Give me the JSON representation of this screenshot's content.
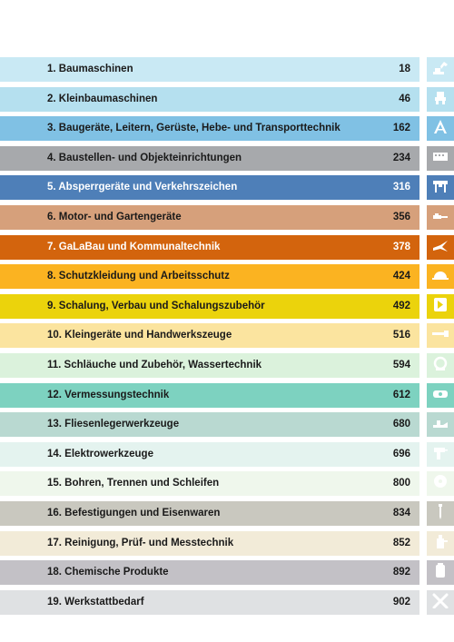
{
  "toc": {
    "entries": [
      {
        "title": "1. Baumaschinen",
        "page": "18",
        "color": "#c9e9f4",
        "text_color": "#1a1a1a",
        "icon": "excavator-icon"
      },
      {
        "title": "2. Kleinbaumaschinen",
        "page": "46",
        "color": "#b5e0ef",
        "text_color": "#1a1a1a",
        "icon": "small-machine-icon"
      },
      {
        "title": "3. Baugeräte, Leitern, Gerüste, Hebe- und Transporttechnik",
        "page": "162",
        "color": "#80c1e4",
        "text_color": "#1a1a1a",
        "icon": "ladder-icon"
      },
      {
        "title": "4. Baustellen- und Objekteinrichtungen",
        "page": "234",
        "color": "#a7a9ac",
        "text_color": "#1a1a1a",
        "icon": "container-icon"
      },
      {
        "title": "5. Absperrgeräte und Verkehrszeichen",
        "page": "316",
        "color": "#4e7fb8",
        "text_color": "#ffffff",
        "icon": "barrier-icon"
      },
      {
        "title": "6. Motor- und Gartengeräte",
        "page": "356",
        "color": "#d6a07b",
        "text_color": "#1a1a1a",
        "icon": "chainsaw-icon"
      },
      {
        "title": "7. GaLaBau und Kommunaltechnik",
        "page": "378",
        "color": "#d3640d",
        "text_color": "#ffffff",
        "icon": "shears-icon"
      },
      {
        "title": "8. Schutzkleidung und Arbeitsschutz",
        "page": "424",
        "color": "#fbb321",
        "text_color": "#1a1a1a",
        "icon": "helmet-icon"
      },
      {
        "title": "9. Schalung, Verbau und Schalungszubehör",
        "page": "492",
        "color": "#ebd30c",
        "text_color": "#1a1a1a",
        "icon": "formwork-icon"
      },
      {
        "title": "10. Kleingeräte und Handwerkszeuge",
        "page": "516",
        "color": "#fbe49f",
        "text_color": "#1a1a1a",
        "icon": "hand-tool-icon"
      },
      {
        "title": "11. Schläuche und Zubehör, Wassertechnik",
        "page": "594",
        "color": "#dbf2dc",
        "text_color": "#1a1a1a",
        "icon": "hose-icon"
      },
      {
        "title": "12. Vermessungstechnik",
        "page": "612",
        "color": "#7dd2c0",
        "text_color": "#1a1a1a",
        "icon": "level-icon"
      },
      {
        "title": "13. Fliesenlegerwerkzeuge",
        "page": "680",
        "color": "#b9d9d1",
        "text_color": "#1a1a1a",
        "icon": "trowel-icon"
      },
      {
        "title": "14. Elektrowerkzeuge",
        "page": "696",
        "color": "#e4f3ef",
        "text_color": "#1a1a1a",
        "icon": "drill-icon"
      },
      {
        "title": "15. Bohren, Trennen und Schleifen",
        "page": "800",
        "color": "#eff7ec",
        "text_color": "#1a1a1a",
        "icon": "disc-icon"
      },
      {
        "title": "16. Befestigungen und Eisenwaren",
        "page": "834",
        "color": "#c9c8bf",
        "text_color": "#1a1a1a",
        "icon": "screw-icon"
      },
      {
        "title": "17. Reinigung, Prüf- und Messtechnik",
        "page": "852",
        "color": "#f2ebd8",
        "text_color": "#1a1a1a",
        "icon": "cleaning-icon"
      },
      {
        "title": "18. Chemische Produkte",
        "page": "892",
        "color": "#c3c1c6",
        "text_color": "#1a1a1a",
        "icon": "canister-icon"
      },
      {
        "title": "19. Werkstattbedarf",
        "page": "902",
        "color": "#dfe1e3",
        "text_color": "#1a1a1a",
        "icon": "wrench-icon"
      }
    ]
  }
}
